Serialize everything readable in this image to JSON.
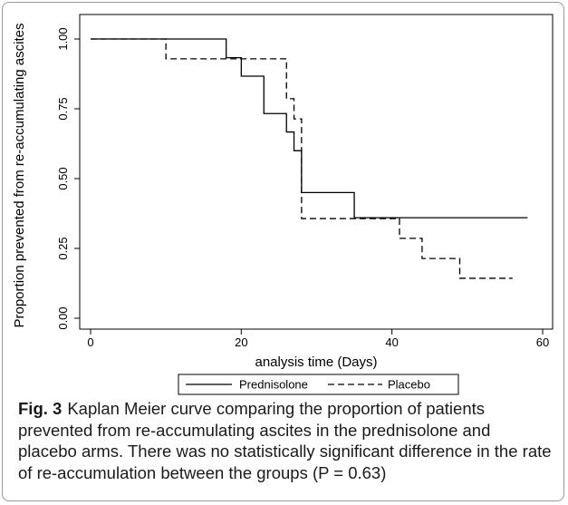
{
  "chart_data": {
    "type": "line",
    "step": true,
    "title": "",
    "xlabel": "analysis time (Days)",
    "ylabel": "Proportion prevented from re-accumulating ascites",
    "xlim": [
      0,
      60
    ],
    "ylim": [
      0,
      1
    ],
    "xticks": [
      0,
      20,
      40,
      60
    ],
    "yticks": [
      0.0,
      0.25,
      0.5,
      0.75,
      1.0
    ],
    "ytick_labels": [
      "0.00",
      "0.25",
      "0.50",
      "0.75",
      "1.00"
    ],
    "grid": false,
    "legend_position": "bottom",
    "series": [
      {
        "name": "Prednisolone",
        "line_style": "solid",
        "color": "#000000",
        "x": [
          0,
          18,
          20,
          23,
          26,
          27,
          28,
          35,
          58
        ],
        "y": [
          1.0,
          0.933,
          0.867,
          0.733,
          0.667,
          0.6,
          0.45,
          0.36,
          0.36
        ]
      },
      {
        "name": "Placebo",
        "line_style": "dashed",
        "color": "#000000",
        "x": [
          0,
          10,
          26,
          27,
          28,
          41,
          44,
          49,
          56
        ],
        "y": [
          1.0,
          0.929,
          0.786,
          0.714,
          0.357,
          0.286,
          0.214,
          0.143,
          0.143
        ]
      }
    ]
  },
  "caption": {
    "label": "Fig. 3",
    "text": "Kaplan Meier curve comparing the proportion of patients prevented from re-accumulating ascites in the prednisolone and placebo arms. There was no statistically significant difference in the rate of re-accumulation between the groups (P = 0.63)"
  }
}
